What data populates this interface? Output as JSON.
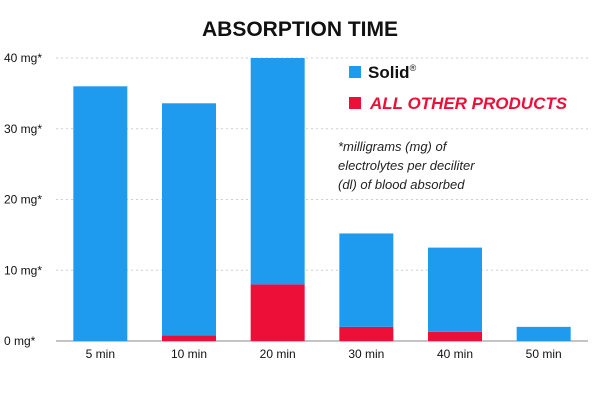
{
  "colors": {
    "solid": "#1e9bef",
    "other": "#ed0f37"
  },
  "legend": {
    "solid_label": "Solid",
    "solid_mark": "®",
    "other_label": "ALL OTHER PRODUCTS"
  },
  "note_lines": [
    "*milligrams (mg) of",
    "electrolytes per deciliter",
    "(dl) of blood absorbed"
  ],
  "chart_data": {
    "type": "bar",
    "stacked": true,
    "title": "ABSORPTION TIME",
    "categories": [
      "5 min",
      "10 min",
      "20 min",
      "30 min",
      "40 min",
      "50 min"
    ],
    "ylim": [
      0,
      40
    ],
    "yticks": [
      0,
      10,
      20,
      30,
      40
    ],
    "ytick_labels": [
      "0 mg*",
      "10 mg*",
      "20 mg*",
      "30 mg*",
      "40 mg*"
    ],
    "grid": true,
    "legend_position": "top-right",
    "series": [
      {
        "name": "ALL OTHER PRODUCTS",
        "values": [
          0,
          0.8,
          8,
          2,
          1.3,
          0
        ]
      },
      {
        "name": "Solid",
        "values": [
          36,
          32.8,
          32,
          13.2,
          11.9,
          2
        ]
      }
    ]
  }
}
